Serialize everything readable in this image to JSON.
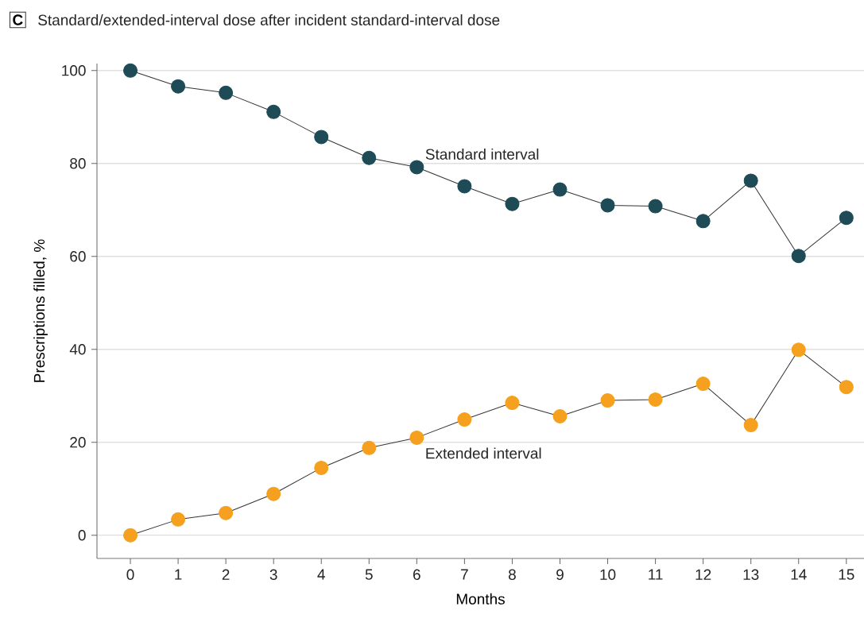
{
  "chart_data": {
    "type": "line",
    "title": "Standard/extended-interval dose after incident standard-interval dose",
    "annotations": [
      "C"
    ],
    "xlabel": "Months",
    "ylabel": "Prescriptions filled, %",
    "x": [
      0,
      1,
      2,
      3,
      4,
      5,
      6,
      7,
      8,
      9,
      10,
      11,
      12,
      13,
      14,
      15
    ],
    "series": [
      {
        "name": "Standard interval",
        "color": "#1f4b57",
        "values": [
          100,
          96.6,
          95.2,
          91.1,
          85.7,
          81.2,
          79.2,
          75.1,
          71.3,
          74.4,
          71.0,
          70.8,
          67.6,
          76.3,
          60.1,
          68.3
        ]
      },
      {
        "name": "Extended interval",
        "color": "#f5a01e",
        "values": [
          0,
          3.4,
          4.8,
          8.9,
          14.5,
          18.8,
          21.0,
          24.9,
          28.5,
          25.6,
          29.0,
          29.2,
          32.6,
          23.7,
          39.9,
          31.9
        ]
      }
    ],
    "xlim": [
      -0.7,
      15.37
    ],
    "ylim": [
      -5,
      101.5
    ],
    "xticks": [
      0,
      1,
      2,
      3,
      4,
      5,
      6,
      7,
      8,
      9,
      10,
      11,
      12,
      13,
      14,
      15
    ],
    "yticks": [
      0,
      20,
      40,
      60,
      80,
      100
    ],
    "grid": "y",
    "legend": false,
    "marker": "circle",
    "line_style": "solid"
  }
}
